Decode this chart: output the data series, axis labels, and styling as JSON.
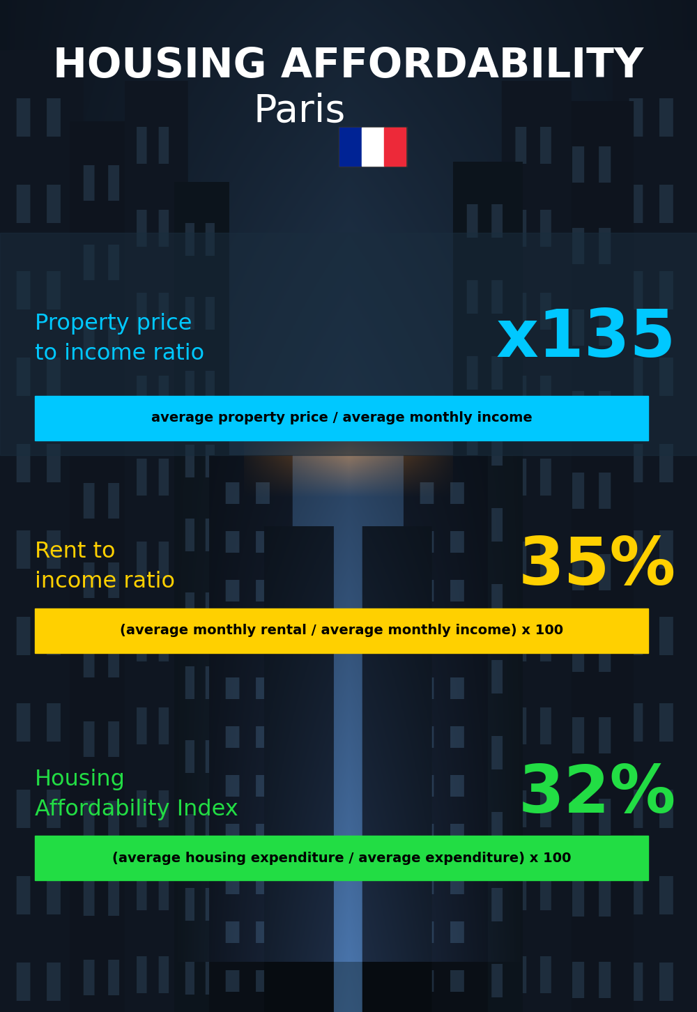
{
  "title_main": "HOUSING AFFORDABILITY",
  "title_city": "Paris",
  "bg_color": "#0d1b2a",
  "section1_label": "Property price\nto income ratio",
  "section1_value": "x135",
  "section1_label_color": "#00c8ff",
  "section1_value_color": "#00c8ff",
  "section1_bar_text": "average property price / average monthly income",
  "section1_bar_color": "#00c8ff",
  "section2_label": "Rent to\nincome ratio",
  "section2_value": "35%",
  "section2_label_color": "#ffd000",
  "section2_value_color": "#ffd000",
  "section2_bar_text": "(average monthly rental / average monthly income) x 100",
  "section2_bar_color": "#ffd000",
  "section3_label": "Housing\nAffordability Index",
  "section3_value": "32%",
  "section3_label_color": "#22dd44",
  "section3_value_color": "#22dd44",
  "section3_bar_text": "(average housing expenditure / average expenditure) x 100",
  "section3_bar_color": "#22dd44",
  "flag_blue": "#002395",
  "flag_white": "#FFFFFF",
  "flag_red": "#ED2939",
  "panel1_color": "#1a2d40",
  "panel1_alpha": 0.65,
  "panel2_alpha": 0.0,
  "panel3_alpha": 0.0
}
